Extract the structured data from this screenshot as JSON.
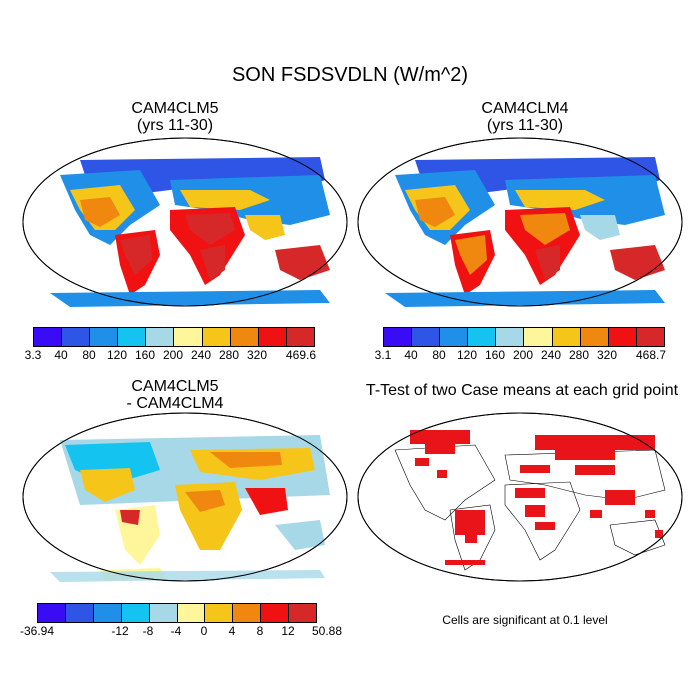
{
  "title": "SON FSDSVDLN (W/m^2)",
  "panels": {
    "p1": {
      "title_line1": "CAM4CLM5",
      "title_line2": "(yrs 11-30)"
    },
    "p2": {
      "title_line1": "CAM4CLM4",
      "title_line2": "(yrs 11-30)"
    },
    "p3": {
      "title_line1": "CAM4CLM5",
      "title_line2": "- CAM4CLM4"
    },
    "p4": {
      "title_line1": "T-Test of two Case means at each grid point",
      "note": "Cells are significant at 0.1 level"
    }
  },
  "colorbars": {
    "cb1": {
      "labels": [
        "3.3",
        "40",
        "80",
        "120",
        "160",
        "200",
        "240",
        "280",
        "320",
        "469.6"
      ]
    },
    "cb2": {
      "labels": [
        "3.1",
        "40",
        "80",
        "120",
        "160",
        "200",
        "240",
        "280",
        "320",
        "468.7"
      ]
    },
    "cb3": {
      "labels": [
        "-36.94",
        "-12",
        "-8",
        "-4",
        "0",
        "4",
        "8",
        "12",
        "50.88"
      ]
    }
  },
  "colors": {
    "abs_scale": [
      "#3a0cf5",
      "#2e55e6",
      "#1f8fe8",
      "#14c3ef",
      "#a6d8e8",
      "#fff59a",
      "#f5c51a",
      "#f0870f",
      "#f01212",
      "#d62828"
    ],
    "diff_scale": [
      "#3a0cf5",
      "#2e55e6",
      "#1f8fe8",
      "#14c3ef",
      "#a6d8e8",
      "#fff59a",
      "#f5c51a",
      "#f0870f",
      "#f01212",
      "#d62828"
    ],
    "significance": "#e8141a"
  }
}
